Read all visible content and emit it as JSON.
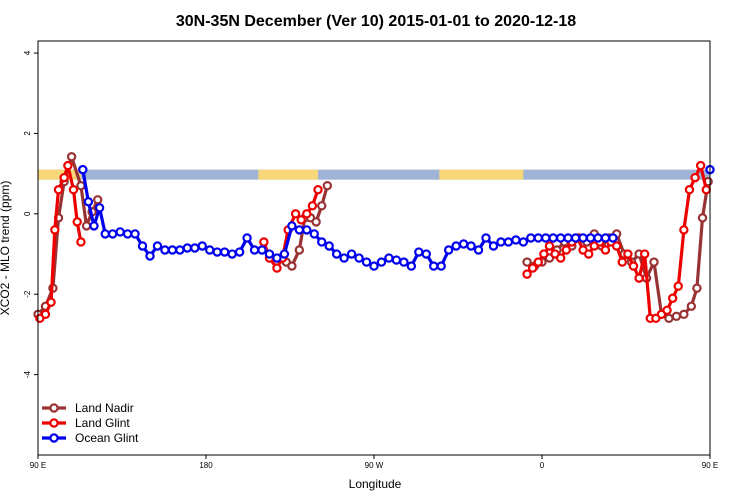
{
  "title": "30N-35N December (Ver 10)   2015-01-01 to 2020-12-18",
  "chart_data": {
    "type": "line",
    "title": "30N-35N December (Ver 10)   2015-01-01 to 2020-12-18",
    "xlabel": "Longitude",
    "ylabel": "XCO2 - MLO trend (ppm)",
    "xlim": [
      90,
      450
    ],
    "ylim": [
      -6,
      4.3
    ],
    "x_ticks": [
      {
        "value": 90,
        "label": "90 E"
      },
      {
        "value": 180,
        "label": "180"
      },
      {
        "value": 270,
        "label": "90 W"
      },
      {
        "value": 360,
        "label": "0"
      },
      {
        "value": 450,
        "label": "90 E"
      }
    ],
    "y_ticks": [
      {
        "value": -4,
        "label": "-4"
      },
      {
        "value": -2,
        "label": "-2"
      },
      {
        "value": 0,
        "label": "0"
      },
      {
        "value": 2,
        "label": "2"
      },
      {
        "value": 4,
        "label": "4"
      }
    ],
    "grid": false,
    "legend_position": "bottom-left",
    "surface_band": {
      "y_range": [
        0.85,
        1.1
      ],
      "ocean_color": "#9fb3d6",
      "land_color": "#f7d77a",
      "land_segments": [
        [
          90,
          113
        ],
        [
          208,
          240
        ],
        [
          305,
          350
        ],
        [
          452,
          464
        ]
      ],
      "segments": []
    },
    "series": [
      {
        "name": "Land Nadir",
        "color": "#993333",
        "x": [
          90,
          94,
          98,
          101,
          104,
          108,
          113,
          116,
          119,
          122,
          124
        ],
        "y": [
          -2.5,
          -2.3,
          -1.85,
          -0.1,
          0.8,
          1.42,
          0.7,
          -0.3,
          0.05,
          0.35,
          null
        ]
      },
      {
        "name": "Land Nadir",
        "color": "#993333",
        "x": [
          220,
          223,
          226,
          230,
          233,
          236,
          239,
          242,
          245
        ],
        "y": [
          -1.1,
          -1.2,
          -1.3,
          -0.9,
          -0.1,
          -0.1,
          -0.2,
          0.2,
          0.7
        ]
      },
      {
        "name": "Land Nadir",
        "color": "#993333",
        "x": [
          352,
          356,
          360,
          364,
          368,
          372,
          376,
          380,
          384,
          388,
          392,
          396,
          400,
          404,
          408,
          412,
          416,
          420,
          424,
          428,
          432,
          436,
          440,
          443,
          446,
          449
        ],
        "y": [
          -1.2,
          -1.3,
          -1.2,
          -1.1,
          -0.9,
          -0.7,
          -0.8,
          -0.6,
          -0.7,
          -0.5,
          -0.8,
          -0.6,
          -0.5,
          -1.0,
          -1.2,
          -1.0,
          -1.6,
          -1.2,
          -2.5,
          -2.6,
          -2.55,
          -2.5,
          -2.3,
          -1.85,
          -0.1,
          0.8
        ]
      },
      {
        "name": "Land Nadir",
        "color": "#993333",
        "x": [
          451,
          454,
          457,
          460
        ],
        "y": [
          1.42,
          0.7,
          -0.3,
          0.35
        ]
      },
      {
        "name": "Land Glint",
        "color": "#ee0000",
        "x": [
          91,
          94,
          97,
          99,
          101,
          104,
          106,
          109,
          111,
          113,
          116
        ],
        "y": [
          -2.6,
          -2.5,
          -2.2,
          -0.4,
          0.6,
          0.9,
          1.2,
          0.6,
          -0.2,
          -0.7,
          null
        ]
      },
      {
        "name": "Land Glint",
        "color": "#ee0000",
        "x": [
          211,
          214,
          218,
          221,
          224,
          228,
          231,
          234,
          237,
          240,
          243
        ],
        "y": [
          -0.7,
          -1.1,
          -1.35,
          -1.1,
          -0.4,
          0.0,
          -0.15,
          0.0,
          0.2,
          0.6,
          null
        ]
      },
      {
        "name": "Land Glint",
        "color": "#ee0000",
        "x": [
          352,
          355,
          358,
          361,
          364,
          367,
          370,
          373,
          376,
          379,
          382,
          385,
          388,
          391,
          394,
          397,
          400,
          403,
          406,
          409,
          412,
          415,
          418,
          421,
          424,
          427,
          430,
          433,
          436,
          439,
          442,
          445,
          448
        ],
        "y": [
          -1.5,
          -1.35,
          -1.2,
          -1.0,
          -0.8,
          -1.0,
          -1.1,
          -0.9,
          -0.7,
          -0.6,
          -0.9,
          -1.0,
          -0.8,
          -0.7,
          -0.9,
          -0.7,
          -0.8,
          -1.2,
          -1.0,
          -1.3,
          -1.6,
          -1.0,
          -2.6,
          -2.6,
          -2.5,
          -2.4,
          -2.1,
          -1.8,
          -0.4,
          0.6,
          0.9,
          1.2,
          0.6
        ]
      },
      {
        "name": "Land Glint",
        "color": "#ee0000",
        "x": [
          452,
          455,
          458
        ],
        "y": [
          -0.2,
          -0.7,
          null
        ]
      },
      {
        "name": "Ocean Glint",
        "color": "#0000ee",
        "x": [
          114,
          117,
          120,
          123,
          126,
          130,
          134,
          138,
          142,
          146,
          150,
          154,
          158,
          162,
          166,
          170,
          174,
          178,
          182,
          186,
          190,
          194,
          198,
          202,
          206,
          210,
          214,
          218,
          222,
          226,
          230,
          234,
          238,
          242,
          246,
          250,
          254,
          258,
          262,
          266,
          270,
          274,
          278,
          282,
          286,
          290,
          294,
          298,
          302,
          306,
          310,
          314,
          318,
          322,
          326,
          330,
          334,
          338,
          342,
          346,
          350,
          354,
          358,
          362,
          366,
          370,
          374,
          378,
          382,
          386,
          390,
          394,
          398
        ],
        "y": [
          1.1,
          0.3,
          -0.3,
          0.15,
          -0.5,
          -0.5,
          -0.45,
          -0.5,
          -0.5,
          -0.8,
          -1.05,
          -0.8,
          -0.9,
          -0.9,
          -0.9,
          -0.85,
          -0.85,
          -0.8,
          -0.9,
          -0.95,
          -0.95,
          -1.0,
          -0.95,
          -0.6,
          -0.9,
          -0.9,
          -1.0,
          -1.1,
          -1.0,
          -0.3,
          -0.4,
          -0.4,
          -0.5,
          -0.7,
          -0.8,
          -1.0,
          -1.1,
          -1.0,
          -1.1,
          -1.2,
          -1.3,
          -1.2,
          -1.1,
          -1.15,
          -1.2,
          -1.3,
          -0.95,
          -1.0,
          -1.3,
          -1.3,
          -0.9,
          -0.8,
          -0.75,
          -0.8,
          -0.9,
          -0.6,
          -0.8,
          -0.7,
          -0.7,
          -0.65,
          -0.7,
          -0.6,
          -0.6,
          -0.6,
          -0.6,
          -0.6,
          -0.6,
          -0.6,
          -0.6,
          -0.6,
          -0.6,
          -0.6,
          -0.6
        ]
      },
      {
        "name": "Ocean Glint",
        "color": "#0000ee",
        "x": [
          450,
          453,
          456,
          459,
          462,
          465,
          468,
          471,
          474,
          477,
          480,
          483,
          486,
          489,
          492,
          495,
          498
        ],
        "y": [
          1.1,
          0.3,
          -0.3,
          0.15,
          -0.5,
          -0.5,
          -0.45,
          -0.5,
          -0.55,
          -0.5,
          -0.8,
          -1.05,
          -0.8,
          -0.8,
          -0.8,
          -0.8,
          -0.8
        ]
      }
    ],
    "legend": [
      {
        "name": "Land Nadir",
        "color": "#993333"
      },
      {
        "name": "Land Glint",
        "color": "#ee0000"
      },
      {
        "name": "Ocean Glint",
        "color": "#0000ee"
      }
    ]
  }
}
